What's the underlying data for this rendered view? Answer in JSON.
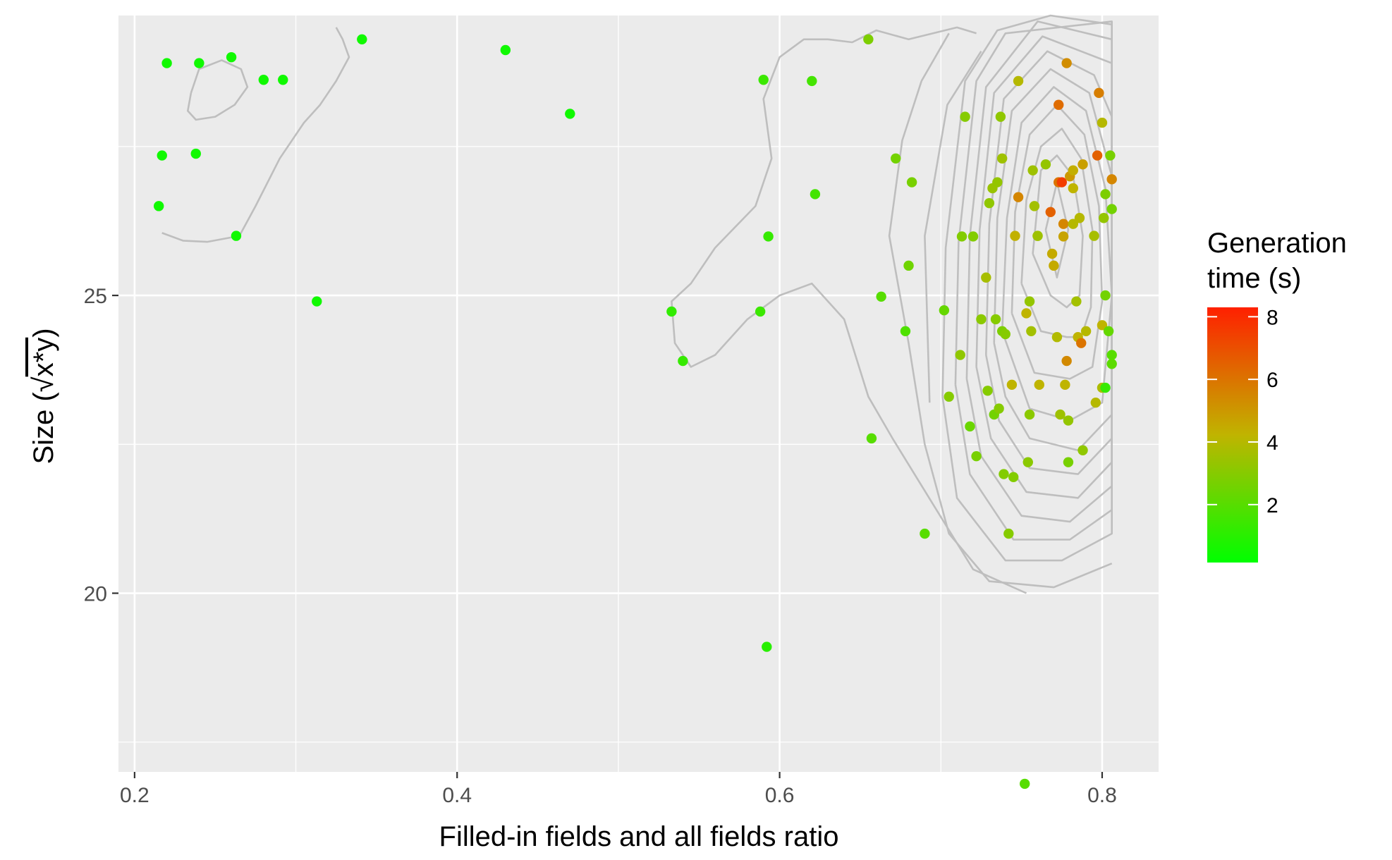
{
  "chart_data": {
    "type": "scatter",
    "title": "",
    "xlabel": "Filled-in fields and all fields ratio",
    "ylabel_prefix": "Size (",
    "ylabel_root": "√",
    "ylabel_radicand": "x*y",
    "ylabel_suffix": ")",
    "xlim": [
      0.19,
      0.835
    ],
    "ylim": [
      17.0,
      29.7
    ],
    "x_ticks": [
      0.2,
      0.4,
      0.6,
      0.8
    ],
    "x_tick_labels": [
      "0.2",
      "0.4",
      "0.6",
      "0.8"
    ],
    "x_minor": [
      0.3,
      0.5,
      0.7
    ],
    "y_ticks": [
      20,
      25
    ],
    "y_tick_labels": [
      "20",
      "25"
    ],
    "y_minor": [
      17.5,
      22.5,
      27.5
    ],
    "grid": true,
    "legend": {
      "title_line1": "Generation",
      "title_line2": "time (s)",
      "position": "right",
      "min": 0.15,
      "max": 8.3,
      "ticks": [
        2,
        4,
        6,
        8
      ],
      "tick_labels": [
        "2",
        "4",
        "6",
        "8"
      ],
      "color_low": "#00ff00",
      "color_mid": "#c0b400",
      "color_high": "#ff2000"
    },
    "colors": {
      "panel": "#ebebeb",
      "grid": "#ffffff",
      "contour": "#bebebe"
    },
    "points": [
      [
        0.215,
        26.5,
        0.5
      ],
      [
        0.217,
        27.35,
        0.5
      ],
      [
        0.22,
        28.9,
        0.5
      ],
      [
        0.238,
        27.38,
        0.5
      ],
      [
        0.24,
        28.9,
        0.5
      ],
      [
        0.26,
        29.0,
        0.5
      ],
      [
        0.263,
        26.0,
        0.5
      ],
      [
        0.28,
        28.62,
        0.5
      ],
      [
        0.292,
        28.62,
        0.5
      ],
      [
        0.313,
        24.9,
        0.5
      ],
      [
        0.341,
        29.3,
        0.5
      ],
      [
        0.43,
        29.12,
        0.5
      ],
      [
        0.47,
        28.05,
        0.5
      ],
      [
        0.533,
        24.73,
        1.2
      ],
      [
        0.54,
        23.9,
        1.3
      ],
      [
        0.588,
        24.73,
        1.4
      ],
      [
        0.59,
        28.62,
        1.4
      ],
      [
        0.592,
        19.1,
        1.0
      ],
      [
        0.593,
        25.99,
        1.3
      ],
      [
        0.62,
        28.6,
        1.6
      ],
      [
        0.622,
        26.7,
        1.6
      ],
      [
        0.655,
        29.3,
        2.8
      ],
      [
        0.657,
        22.6,
        2.0
      ],
      [
        0.663,
        24.98,
        2.0
      ],
      [
        0.672,
        27.3,
        2.6
      ],
      [
        0.678,
        24.4,
        1.8
      ],
      [
        0.68,
        25.5,
        2.5
      ],
      [
        0.682,
        26.9,
        2.7
      ],
      [
        0.69,
        21.0,
        2.0
      ],
      [
        0.702,
        24.75,
        2.3
      ],
      [
        0.705,
        23.3,
        3.0
      ],
      [
        0.712,
        24.0,
        3.2
      ],
      [
        0.713,
        25.99,
        2.9
      ],
      [
        0.715,
        28.0,
        3.0
      ],
      [
        0.718,
        22.8,
        2.4
      ],
      [
        0.72,
        25.99,
        2.9
      ],
      [
        0.722,
        22.3,
        2.7
      ],
      [
        0.725,
        24.6,
        3.1
      ],
      [
        0.728,
        25.3,
        3.7
      ],
      [
        0.729,
        23.4,
        3.0
      ],
      [
        0.73,
        26.55,
        3.2
      ],
      [
        0.732,
        26.8,
        3.4
      ],
      [
        0.733,
        23.0,
        2.6
      ],
      [
        0.734,
        24.6,
        3.0
      ],
      [
        0.735,
        26.9,
        3.3
      ],
      [
        0.736,
        23.1,
        3.0
      ],
      [
        0.737,
        28.0,
        3.2
      ],
      [
        0.738,
        24.4,
        2.8
      ],
      [
        0.739,
        22.0,
        2.9
      ],
      [
        0.738,
        27.3,
        3.5
      ],
      [
        0.74,
        24.35,
        3.0
      ],
      [
        0.742,
        21.0,
        3.0
      ],
      [
        0.744,
        23.5,
        4.2
      ],
      [
        0.745,
        21.95,
        2.9
      ],
      [
        0.746,
        26.0,
        4.3
      ],
      [
        0.748,
        26.65,
        5.5
      ],
      [
        0.748,
        28.6,
        4.0
      ],
      [
        0.753,
        24.7,
        4.2
      ],
      [
        0.754,
        22.2,
        3.1
      ],
      [
        0.755,
        24.9,
        3.3
      ],
      [
        0.755,
        23.0,
        3.1
      ],
      [
        0.756,
        24.4,
        3.6
      ],
      [
        0.757,
        27.1,
        3.5
      ],
      [
        0.758,
        26.5,
        3.6
      ],
      [
        0.76,
        26.0,
        3.4
      ],
      [
        0.76,
        26.0,
        3.5
      ],
      [
        0.761,
        23.5,
        4.2
      ],
      [
        0.765,
        27.2,
        3.3
      ],
      [
        0.768,
        26.4,
        6.5
      ],
      [
        0.769,
        25.7,
        4.5
      ],
      [
        0.77,
        25.5,
        4.5
      ],
      [
        0.772,
        24.3,
        3.9
      ],
      [
        0.773,
        26.9,
        6.0
      ],
      [
        0.773,
        28.2,
        6.2
      ],
      [
        0.774,
        23.0,
        3.5
      ],
      [
        0.775,
        26.9,
        7.5
      ],
      [
        0.776,
        26.2,
        5.5
      ],
      [
        0.776,
        25.99,
        4.7
      ],
      [
        0.777,
        23.5,
        4.2
      ],
      [
        0.778,
        28.9,
        5.3
      ],
      [
        0.778,
        23.9,
        5.4
      ],
      [
        0.779,
        22.9,
        3.3
      ],
      [
        0.779,
        22.2,
        2.7
      ],
      [
        0.78,
        27.0,
        5.0
      ],
      [
        0.782,
        26.2,
        4.0
      ],
      [
        0.782,
        27.1,
        4.4
      ],
      [
        0.782,
        26.8,
        4.2
      ],
      [
        0.784,
        24.9,
        3.6
      ],
      [
        0.785,
        24.3,
        4.2
      ],
      [
        0.786,
        26.3,
        4.0
      ],
      [
        0.787,
        24.2,
        6.0
      ],
      [
        0.788,
        27.2,
        4.8
      ],
      [
        0.788,
        22.4,
        3.2
      ],
      [
        0.79,
        24.4,
        4.0
      ],
      [
        0.795,
        26.0,
        3.7
      ],
      [
        0.796,
        23.2,
        4.0
      ],
      [
        0.797,
        27.35,
        6.5
      ],
      [
        0.798,
        28.4,
        5.7
      ],
      [
        0.8,
        24.5,
        4.2
      ],
      [
        0.8,
        23.45,
        3.8
      ],
      [
        0.8,
        27.9,
        4.0
      ],
      [
        0.801,
        26.3,
        3.3
      ],
      [
        0.802,
        26.7,
        2.8
      ],
      [
        0.802,
        25.0,
        2.6
      ],
      [
        0.802,
        23.45,
        1.3
      ],
      [
        0.804,
        24.4,
        2.3
      ],
      [
        0.805,
        27.35,
        2.7
      ],
      [
        0.806,
        24.0,
        2.0
      ],
      [
        0.806,
        23.85,
        2.1
      ],
      [
        0.806,
        26.45,
        2.6
      ],
      [
        0.806,
        26.95,
        5.5
      ],
      [
        0.752,
        16.8,
        2.0
      ]
    ],
    "contours": [
      [
        [
          0.765,
          26.1
        ],
        [
          0.772,
          26.9
        ],
        [
          0.779,
          26.1
        ],
        [
          0.772,
          25.3
        ],
        [
          0.765,
          26.1
        ]
      ],
      [
        [
          0.757,
          25.7
        ],
        [
          0.762,
          27.1
        ],
        [
          0.772,
          27.35
        ],
        [
          0.782,
          27.0
        ],
        [
          0.788,
          26.0
        ],
        [
          0.786,
          25.0
        ],
        [
          0.778,
          24.8
        ],
        [
          0.768,
          25.0
        ],
        [
          0.757,
          25.7
        ]
      ],
      [
        [
          0.75,
          25.2
        ],
        [
          0.753,
          26.6
        ],
        [
          0.762,
          27.5
        ],
        [
          0.775,
          27.8
        ],
        [
          0.787,
          27.3
        ],
        [
          0.794,
          26.1
        ],
        [
          0.793,
          24.8
        ],
        [
          0.787,
          24.3
        ],
        [
          0.778,
          24.3
        ],
        [
          0.762,
          24.4
        ],
        [
          0.75,
          25.2
        ]
      ],
      [
        [
          0.744,
          24.7
        ],
        [
          0.746,
          26.4
        ],
        [
          0.755,
          27.7
        ],
        [
          0.772,
          28.2
        ],
        [
          0.789,
          27.7
        ],
        [
          0.798,
          26.5
        ],
        [
          0.8,
          24.9
        ],
        [
          0.794,
          23.8
        ],
        [
          0.78,
          23.6
        ],
        [
          0.758,
          23.7
        ],
        [
          0.744,
          24.7
        ]
      ],
      [
        [
          0.738,
          24.4
        ],
        [
          0.741,
          26.3
        ],
        [
          0.75,
          27.9
        ],
        [
          0.77,
          28.5
        ],
        [
          0.79,
          28.1
        ],
        [
          0.802,
          26.8
        ],
        [
          0.806,
          25.0
        ],
        [
          0.8,
          23.2
        ],
        [
          0.78,
          22.9
        ],
        [
          0.755,
          23.1
        ],
        [
          0.738,
          24.4
        ]
      ],
      [
        [
          0.733,
          24.2
        ],
        [
          0.735,
          26.3
        ],
        [
          0.744,
          28.1
        ],
        [
          0.768,
          28.8
        ],
        [
          0.792,
          28.4
        ],
        [
          0.806,
          27.0
        ],
        [
          0.806,
          23.0
        ],
        [
          0.785,
          22.4
        ],
        [
          0.755,
          22.6
        ],
        [
          0.74,
          23.3
        ],
        [
          0.733,
          24.2
        ]
      ],
      [
        [
          0.728,
          24.0
        ],
        [
          0.73,
          26.2
        ],
        [
          0.739,
          28.3
        ],
        [
          0.766,
          29.1
        ],
        [
          0.795,
          28.7
        ],
        [
          0.806,
          28.0
        ],
        [
          0.806,
          22.6
        ],
        [
          0.785,
          22.0
        ],
        [
          0.755,
          22.1
        ],
        [
          0.736,
          22.9
        ],
        [
          0.728,
          24.0
        ]
      ],
      [
        [
          0.722,
          23.8
        ],
        [
          0.724,
          26.1
        ],
        [
          0.733,
          28.4
        ],
        [
          0.763,
          29.35
        ],
        [
          0.806,
          28.9
        ],
        [
          0.806,
          22.2
        ],
        [
          0.785,
          21.6
        ],
        [
          0.753,
          21.7
        ],
        [
          0.731,
          22.6
        ],
        [
          0.722,
          23.8
        ]
      ],
      [
        [
          0.716,
          23.6
        ],
        [
          0.718,
          26.0
        ],
        [
          0.728,
          28.5
        ],
        [
          0.76,
          29.6
        ],
        [
          0.806,
          29.3
        ],
        [
          0.806,
          21.8
        ],
        [
          0.78,
          21.2
        ],
        [
          0.75,
          21.3
        ],
        [
          0.725,
          22.3
        ],
        [
          0.716,
          23.6
        ]
      ],
      [
        [
          0.709,
          23.5
        ],
        [
          0.711,
          25.9
        ],
        [
          0.722,
          28.6
        ],
        [
          0.74,
          29.4
        ],
        [
          0.806,
          29.6
        ],
        [
          0.806,
          21.4
        ],
        [
          0.78,
          20.9
        ],
        [
          0.745,
          20.9
        ],
        [
          0.718,
          22.0
        ],
        [
          0.709,
          23.5
        ]
      ],
      [
        [
          0.701,
          23.3
        ],
        [
          0.703,
          25.8
        ],
        [
          0.715,
          28.6
        ],
        [
          0.735,
          29.45
        ],
        [
          0.768,
          29.7
        ],
        [
          0.806,
          29.55
        ],
        [
          0.806,
          21.0
        ],
        [
          0.775,
          20.55
        ],
        [
          0.74,
          20.55
        ],
        [
          0.71,
          21.6
        ],
        [
          0.701,
          23.3
        ]
      ],
      [
        [
          0.693,
          23.2
        ],
        [
          0.69,
          26.0
        ],
        [
          0.704,
          28.2
        ],
        [
          0.725,
          29.1
        ]
      ],
      [
        [
          0.806,
          20.5
        ],
        [
          0.77,
          20.1
        ],
        [
          0.73,
          20.2
        ],
        [
          0.705,
          21.0
        ],
        [
          0.69,
          22.5
        ],
        [
          0.68,
          24.2
        ],
        [
          0.668,
          26.0
        ],
        [
          0.676,
          27.6
        ],
        [
          0.688,
          28.6
        ],
        [
          0.705,
          29.4
        ]
      ],
      [
        [
          0.753,
          20.0
        ],
        [
          0.72,
          20.4
        ],
        [
          0.695,
          21.5
        ],
        [
          0.67,
          22.6
        ],
        [
          0.655,
          23.3
        ],
        [
          0.64,
          24.6
        ],
        [
          0.62,
          25.2
        ],
        [
          0.6,
          25.0
        ],
        [
          0.58,
          24.6
        ],
        [
          0.56,
          24.0
        ],
        [
          0.545,
          23.8
        ],
        [
          0.535,
          24.2
        ],
        [
          0.533,
          24.9
        ],
        [
          0.545,
          25.2
        ],
        [
          0.56,
          25.8
        ],
        [
          0.585,
          26.5
        ],
        [
          0.595,
          27.3
        ],
        [
          0.59,
          28.3
        ],
        [
          0.6,
          29.0
        ],
        [
          0.615,
          29.3
        ],
        [
          0.63,
          29.3
        ],
        [
          0.645,
          29.25
        ],
        [
          0.66,
          29.45
        ],
        [
          0.68,
          29.3
        ],
        [
          0.71,
          29.5
        ],
        [
          0.722,
          29.4
        ]
      ],
      [
        [
          0.265,
          26.0
        ],
        [
          0.275,
          26.5
        ],
        [
          0.29,
          27.3
        ],
        [
          0.305,
          27.9
        ],
        [
          0.315,
          28.2
        ],
        [
          0.325,
          28.6
        ],
        [
          0.333,
          29.0
        ],
        [
          0.329,
          29.3
        ],
        [
          0.325,
          29.5
        ]
      ],
      [
        [
          0.265,
          26.0
        ],
        [
          0.245,
          25.9
        ],
        [
          0.23,
          25.92
        ],
        [
          0.217,
          26.05
        ]
      ],
      [
        [
          0.235,
          28.4
        ],
        [
          0.24,
          28.8
        ],
        [
          0.254,
          28.95
        ],
        [
          0.266,
          28.8
        ],
        [
          0.27,
          28.5
        ],
        [
          0.262,
          28.2
        ],
        [
          0.25,
          28.0
        ],
        [
          0.238,
          27.95
        ],
        [
          0.233,
          28.1
        ],
        [
          0.235,
          28.4
        ]
      ]
    ]
  }
}
